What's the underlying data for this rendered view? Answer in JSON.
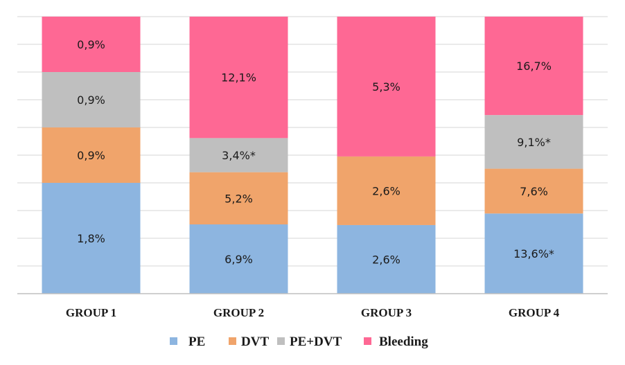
{
  "chart_data": {
    "type": "bar",
    "stacked": "percent",
    "title": "",
    "xlabel": "",
    "ylabel": "",
    "ylim": [
      0,
      100
    ],
    "grid": true,
    "y_tick_labels_visible": false,
    "legend_position": "bottom",
    "categories": [
      "GROUP 1",
      "GROUP 2",
      "GROUP 3",
      "GROUP 4"
    ],
    "series": [
      {
        "name": "PE",
        "color": "#8db5e0",
        "values": [
          1.8,
          6.9,
          2.6,
          13.6
        ],
        "labels": [
          "1,8%",
          "6,9%",
          "2,6%",
          "13,6%*"
        ]
      },
      {
        "name": "DVT",
        "color": "#f0a46b",
        "values": [
          0.9,
          5.2,
          2.6,
          7.6
        ],
        "labels": [
          "0,9%",
          "5,2%",
          "2,6%",
          "7,6%"
        ]
      },
      {
        "name": "PE+DVT",
        "color": "#bfbfbf",
        "values": [
          0.9,
          3.4,
          0,
          9.1
        ],
        "labels": [
          "0,9%",
          "3,4%*",
          "",
          "9,1%*"
        ]
      },
      {
        "name": "Bleeding",
        "color": "#fe6894",
        "values": [
          0.9,
          12.1,
          5.3,
          16.7
        ],
        "labels": [
          "0,9%",
          "12,1%",
          "5,3%",
          "16,7%"
        ]
      }
    ]
  }
}
